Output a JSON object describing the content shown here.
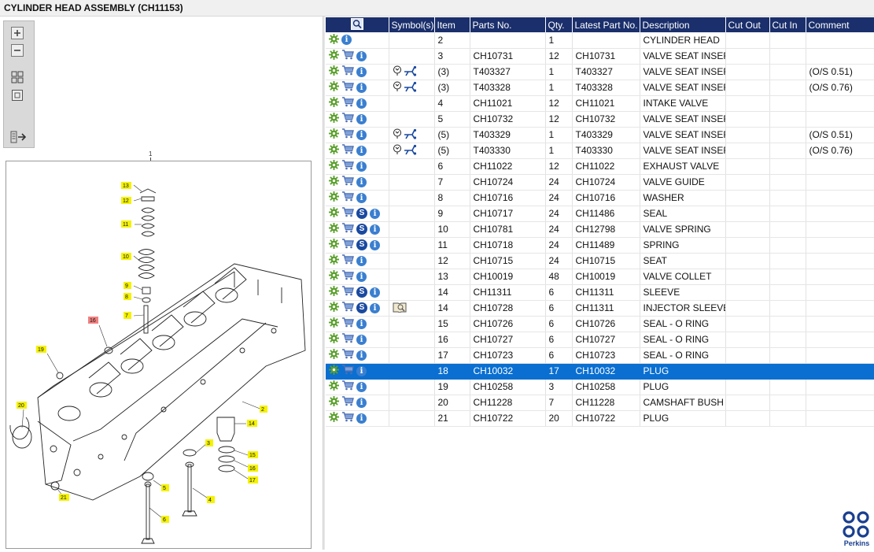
{
  "window": {
    "title": "CYLINDER HEAD ASSEMBLY (CH11153)"
  },
  "toolbar": {
    "icons": [
      "zoom-in-icon",
      "zoom-out-icon",
      "fit-page-icon",
      "actual-size-icon",
      "export-icon"
    ]
  },
  "diagram": {
    "callouts": [
      "1",
      "2",
      "4",
      "6",
      "13",
      "12",
      "11",
      "10",
      "9",
      "8",
      "7",
      "16",
      "19",
      "20",
      "14",
      "3",
      "15",
      "16",
      "17",
      "5",
      "21"
    ]
  },
  "table": {
    "columns": [
      "",
      "Symbol(s)",
      "Item",
      "Parts No.",
      "Qty.",
      "Latest Part No.",
      "Description",
      "Cut Out",
      "Cut In",
      "Comment"
    ],
    "rows": [
      {
        "cart": false,
        "s": false,
        "sym": "",
        "item": "2",
        "part": "",
        "qty": "1",
        "latest": "",
        "desc": "CYLINDER HEAD",
        "comment": ""
      },
      {
        "cart": true,
        "s": false,
        "sym": "",
        "item": "3",
        "part": "CH10731",
        "qty": "12",
        "latest": "CH10731",
        "desc": "VALVE SEAT INSERT",
        "comment": ""
      },
      {
        "cart": true,
        "s": false,
        "sym": "alt",
        "item": "(3)",
        "part": "T403327",
        "qty": "1",
        "latest": "T403327",
        "desc": "VALVE SEAT INSERT",
        "comment": "(O/S 0.51)"
      },
      {
        "cart": true,
        "s": false,
        "sym": "alt",
        "item": "(3)",
        "part": "T403328",
        "qty": "1",
        "latest": "T403328",
        "desc": "VALVE SEAT INSERT",
        "comment": "(O/S 0.76)"
      },
      {
        "cart": true,
        "s": false,
        "sym": "",
        "item": "4",
        "part": "CH11021",
        "qty": "12",
        "latest": "CH11021",
        "desc": "INTAKE VALVE",
        "comment": ""
      },
      {
        "cart": true,
        "s": false,
        "sym": "",
        "item": "5",
        "part": "CH10732",
        "qty": "12",
        "latest": "CH10732",
        "desc": "VALVE SEAT INSERT",
        "comment": ""
      },
      {
        "cart": true,
        "s": false,
        "sym": "alt",
        "item": "(5)",
        "part": "T403329",
        "qty": "1",
        "latest": "T403329",
        "desc": "VALVE SEAT INSERT",
        "comment": "(O/S 0.51)"
      },
      {
        "cart": true,
        "s": false,
        "sym": "alt",
        "item": "(5)",
        "part": "T403330",
        "qty": "1",
        "latest": "T403330",
        "desc": "VALVE SEAT INSERT",
        "comment": "(O/S 0.76)"
      },
      {
        "cart": true,
        "s": false,
        "sym": "",
        "item": "6",
        "part": "CH11022",
        "qty": "12",
        "latest": "CH11022",
        "desc": "EXHAUST VALVE",
        "comment": ""
      },
      {
        "cart": true,
        "s": false,
        "sym": "",
        "item": "7",
        "part": "CH10724",
        "qty": "24",
        "latest": "CH10724",
        "desc": "VALVE GUIDE",
        "comment": ""
      },
      {
        "cart": true,
        "s": false,
        "sym": "",
        "item": "8",
        "part": "CH10716",
        "qty": "24",
        "latest": "CH10716",
        "desc": "WASHER",
        "comment": ""
      },
      {
        "cart": true,
        "s": true,
        "sym": "",
        "item": "9",
        "part": "CH10717",
        "qty": "24",
        "latest": "CH11486",
        "desc": "SEAL",
        "comment": ""
      },
      {
        "cart": true,
        "s": true,
        "sym": "",
        "item": "10",
        "part": "CH10781",
        "qty": "24",
        "latest": "CH12798",
        "desc": "VALVE SPRING",
        "comment": ""
      },
      {
        "cart": true,
        "s": true,
        "sym": "",
        "item": "11",
        "part": "CH10718",
        "qty": "24",
        "latest": "CH11489",
        "desc": "SPRING",
        "comment": ""
      },
      {
        "cart": true,
        "s": false,
        "sym": "",
        "item": "12",
        "part": "CH10715",
        "qty": "24",
        "latest": "CH10715",
        "desc": "SEAT",
        "comment": ""
      },
      {
        "cart": true,
        "s": false,
        "sym": "",
        "item": "13",
        "part": "CH10019",
        "qty": "48",
        "latest": "CH10019",
        "desc": "VALVE COLLET",
        "comment": ""
      },
      {
        "cart": true,
        "s": true,
        "sym": "",
        "item": "14",
        "part": "CH11311",
        "qty": "6",
        "latest": "CH11311",
        "desc": "SLEEVE",
        "comment": ""
      },
      {
        "cart": true,
        "s": true,
        "sym": "book",
        "item": "14",
        "part": "CH10728",
        "qty": "6",
        "latest": "CH11311",
        "desc": "INJECTOR SLEEVE",
        "comment": ""
      },
      {
        "cart": true,
        "s": false,
        "sym": "",
        "item": "15",
        "part": "CH10726",
        "qty": "6",
        "latest": "CH10726",
        "desc": "SEAL - O RING",
        "comment": ""
      },
      {
        "cart": true,
        "s": false,
        "sym": "",
        "item": "16",
        "part": "CH10727",
        "qty": "6",
        "latest": "CH10727",
        "desc": "SEAL - O RING",
        "comment": ""
      },
      {
        "cart": true,
        "s": false,
        "sym": "",
        "item": "17",
        "part": "CH10723",
        "qty": "6",
        "latest": "CH10723",
        "desc": "SEAL - O RING",
        "comment": ""
      },
      {
        "cart": true,
        "s": false,
        "sym": "",
        "item": "18",
        "part": "CH10032",
        "qty": "17",
        "latest": "CH10032",
        "desc": "PLUG",
        "comment": "",
        "selected": true
      },
      {
        "cart": true,
        "s": false,
        "sym": "",
        "item": "19",
        "part": "CH10258",
        "qty": "3",
        "latest": "CH10258",
        "desc": "PLUG",
        "comment": ""
      },
      {
        "cart": true,
        "s": false,
        "sym": "",
        "item": "20",
        "part": "CH11228",
        "qty": "7",
        "latest": "CH11228",
        "desc": "CAMSHAFT BUSH",
        "comment": ""
      },
      {
        "cart": true,
        "s": false,
        "sym": "",
        "item": "21",
        "part": "CH10722",
        "qty": "20",
        "latest": "CH10722",
        "desc": "PLUG",
        "comment": ""
      }
    ]
  },
  "brand": {
    "name": "Perkins",
    "color": "#1a3f8f"
  },
  "colors": {
    "header": "#1a2f6b",
    "selected": "#0a6fd1",
    "callout": "#f4f200",
    "callout_selected": "#f08080"
  }
}
